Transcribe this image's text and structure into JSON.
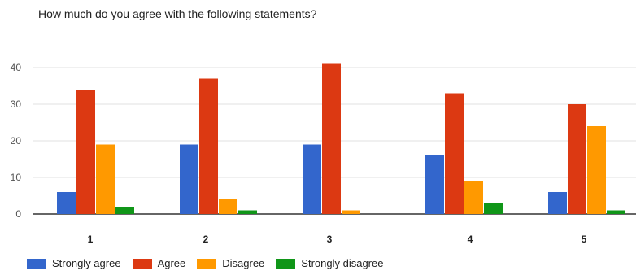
{
  "chart_data": {
    "type": "bar",
    "title": "How much do you agree with the following statements?",
    "xlabel": "",
    "ylabel": "",
    "categories": [
      "1",
      "2",
      "3",
      "4",
      "5"
    ],
    "ylim": [
      0,
      40
    ],
    "yticks": [
      0,
      10,
      20,
      30,
      40
    ],
    "grid": true,
    "legend_position": "bottom-left",
    "series": [
      {
        "name": "Strongly agree",
        "color": "#3366cc",
        "values": [
          6,
          19,
          19,
          16,
          6
        ]
      },
      {
        "name": "Agree",
        "color": "#dc3912",
        "values": [
          34,
          37,
          41,
          33,
          30
        ]
      },
      {
        "name": "Disagree",
        "color": "#ff9900",
        "values": [
          19,
          4,
          1,
          9,
          24
        ]
      },
      {
        "name": "Strongly disagree",
        "color": "#109618",
        "values": [
          2,
          1,
          0,
          3,
          1
        ]
      }
    ]
  }
}
